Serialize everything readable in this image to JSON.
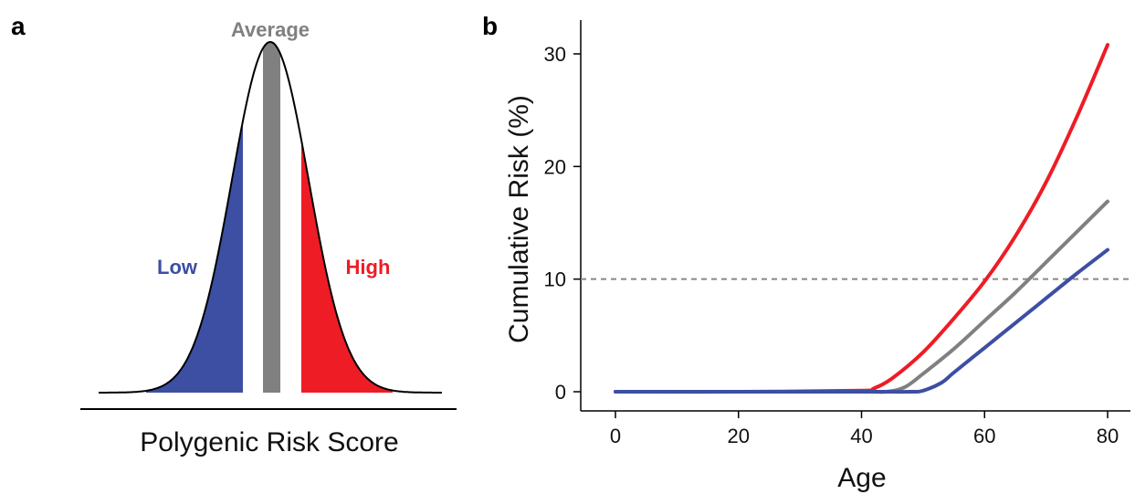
{
  "panel_a": {
    "letter": "a",
    "xlabel": "Polygenic Risk Score",
    "labels": {
      "low": "Low",
      "average": "Average",
      "high": "High"
    },
    "colors": {
      "low": "#3d4fa3",
      "average": "#808080",
      "high": "#ee1c25",
      "outline": "#000000"
    }
  },
  "panel_b": {
    "letter": "b",
    "xlabel": "Age",
    "ylabel": "Cumulative Risk (%)"
  },
  "chart_data": [
    {
      "type": "area",
      "xlabel": "Polygenic Risk Score",
      "ylabel": "",
      "series": [
        {
          "name": "Low",
          "color": "#3d4fa3"
        },
        {
          "name": "Average",
          "color": "#808080"
        },
        {
          "name": "High",
          "color": "#ee1c25"
        }
      ],
      "grid": false
    },
    {
      "type": "line",
      "xlabel": "Age",
      "ylabel": "Cumulative Risk (%)",
      "xlim": [
        0,
        80
      ],
      "ylim": [
        0,
        31
      ],
      "xticks": [
        0,
        20,
        40,
        60,
        80
      ],
      "yticks": [
        0,
        10,
        20,
        30
      ],
      "grid": false,
      "reference_line": {
        "y": 10,
        "style": "dashed",
        "color": "#888888"
      },
      "series": [
        {
          "color": "#ee1c25",
          "x": [
            0,
            20,
            40,
            42,
            45,
            50,
            55,
            60,
            65,
            70,
            75,
            80
          ],
          "y": [
            0,
            0,
            0.1,
            0.3,
            1.2,
            3.5,
            6.5,
            9.8,
            13.8,
            18.6,
            24.4,
            30.8
          ]
        },
        {
          "color": "#808080",
          "x": [
            0,
            20,
            40,
            44,
            47,
            50,
            55,
            60,
            65,
            70,
            75,
            80
          ],
          "y": [
            0,
            0,
            0,
            0,
            0.4,
            1.6,
            3.8,
            6.3,
            8.8,
            11.5,
            14.2,
            16.9
          ]
        },
        {
          "color": "#3d4fa3",
          "x": [
            0,
            20,
            40,
            48,
            50,
            53,
            55,
            60,
            65,
            70,
            75,
            80
          ],
          "y": [
            0,
            0,
            0,
            0,
            0.1,
            0.8,
            1.7,
            3.9,
            6.1,
            8.3,
            10.5,
            12.6
          ]
        }
      ]
    }
  ]
}
